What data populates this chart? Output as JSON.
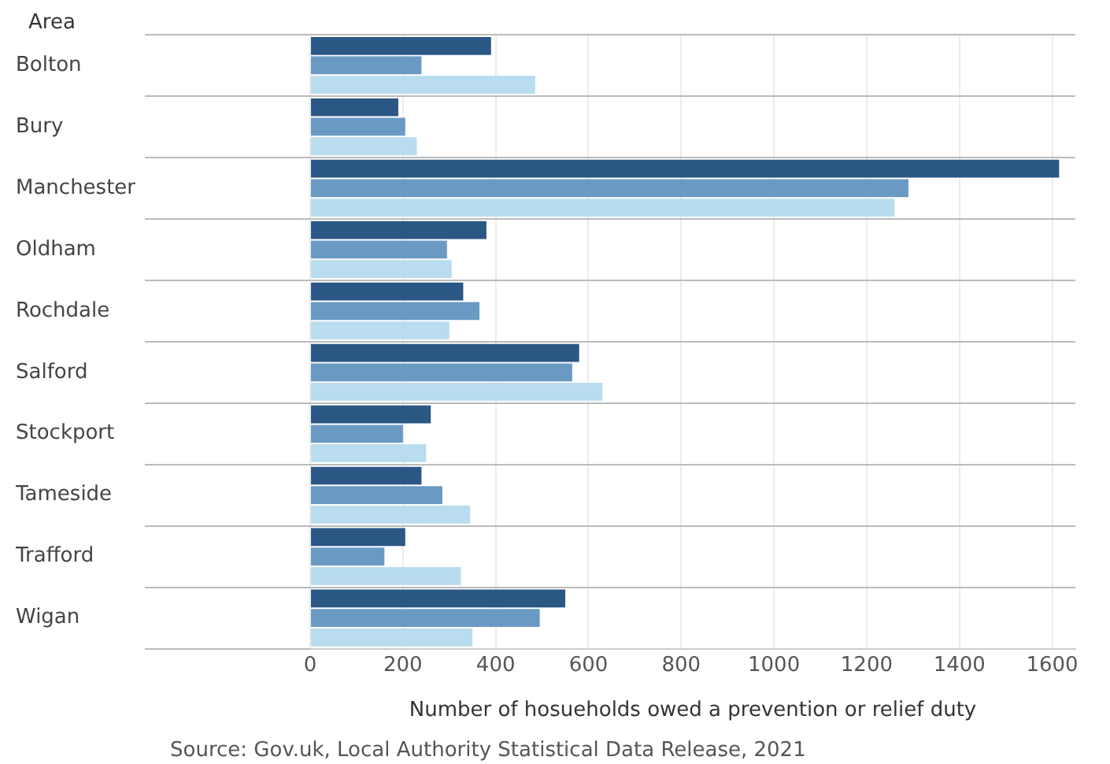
{
  "chart_data": {
    "type": "bar",
    "orientation": "horizontal",
    "ylabel": "Area",
    "xlabel": "Number of hosueholds owed a prevention or relief duty",
    "annotations": [
      "Source: Gov.uk, Local Authority Statistical Data Release, 2021"
    ],
    "categories": [
      "Bolton",
      "Bury",
      "Manchester",
      "Oldham",
      "Rochdale",
      "Salford",
      "Stockport",
      "Tameside",
      "Trafford",
      "Wigan"
    ],
    "series": [
      {
        "color": "#2b5784",
        "values": [
          390,
          190,
          1615,
          380,
          330,
          580,
          260,
          240,
          205,
          550
        ]
      },
      {
        "color": "#6a9ac4",
        "values": [
          240,
          205,
          1290,
          295,
          365,
          565,
          200,
          285,
          160,
          495
        ]
      },
      {
        "color": "#b9dcef",
        "values": [
          485,
          230,
          1260,
          305,
          300,
          630,
          250,
          345,
          325,
          350
        ]
      }
    ],
    "xlim": [
      0,
      1650
    ],
    "xticks": [
      0,
      200,
      400,
      600,
      800,
      1000,
      1200,
      1400,
      1600
    ],
    "grid": true,
    "legend": false
  }
}
